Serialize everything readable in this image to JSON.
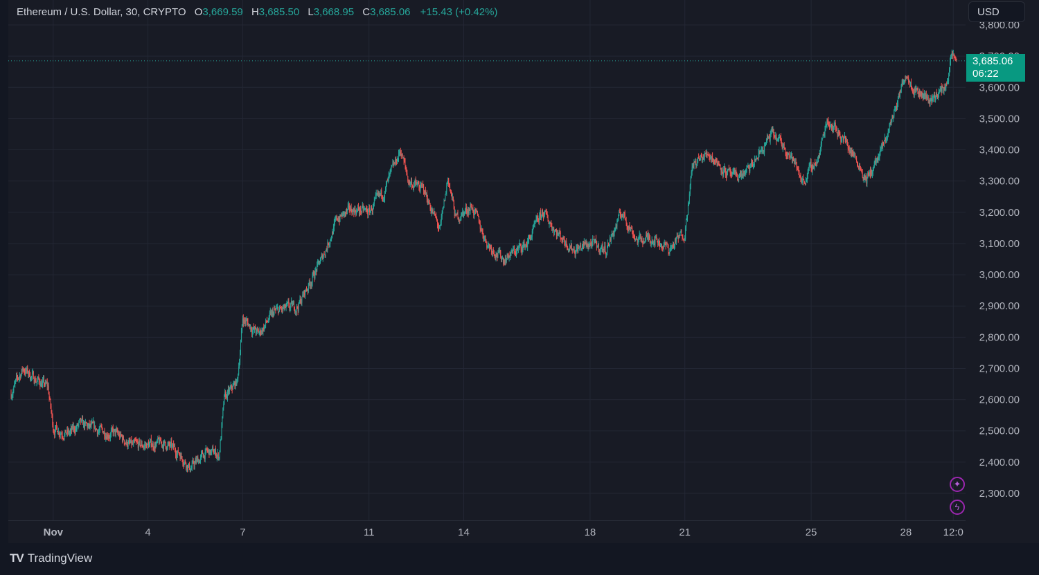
{
  "legend": {
    "symbol": "Ethereum / U.S. Dollar, 30, CRYPTO",
    "open_label": "O",
    "open": "3,669.59",
    "high_label": "H",
    "high": "3,685.50",
    "low_label": "L",
    "low": "3,668.95",
    "close_label": "C",
    "close": "3,685.06",
    "change": "+15.43 (+0.42%)"
  },
  "currency_button": "USD",
  "last_price": {
    "price": "3,685.06",
    "countdown": "06:22"
  },
  "brand": {
    "name": "TradingView"
  },
  "icons": {
    "ai": "sparkle-icon",
    "alert": "lightning-icon"
  },
  "colors": {
    "up": "#26a69a",
    "down": "#ef5350",
    "background": "#131722",
    "grid": "#2a2e39",
    "last_price": "#089981"
  },
  "chart_data": {
    "type": "candlestick",
    "title": "Ethereum / U.S. Dollar, 30, CRYPTO",
    "interval": "30",
    "ylim": [
      2230,
      3850
    ],
    "y_ticks": [
      3800,
      3700,
      3600,
      3500,
      3400,
      3300,
      3200,
      3100,
      3000,
      2900,
      2800,
      2700,
      2600,
      2500,
      2400,
      2300
    ],
    "y_tick_labels": [
      "3,800.00",
      "3,700.00",
      "3,600.00",
      "3,500.00",
      "3,400.00",
      "3,300.00",
      "3,200.00",
      "3,100.00",
      "3,000.00",
      "2,900.00",
      "2,800.00",
      "2,700.00",
      "2,600.00",
      "2,500.00",
      "2,400.00",
      "2,300.00"
    ],
    "x_range": [
      "2024-10-30T16:00",
      "2024-11-29T14:30"
    ],
    "x_ticks": [
      {
        "label": "Nov",
        "t": "2024-11-01T00:00",
        "bold": true
      },
      {
        "label": "4",
        "t": "2024-11-04T00:00"
      },
      {
        "label": "7",
        "t": "2024-11-07T00:00"
      },
      {
        "label": "11",
        "t": "2024-11-11T00:00"
      },
      {
        "label": "14",
        "t": "2024-11-14T00:00"
      },
      {
        "label": "18",
        "t": "2024-11-18T00:00"
      },
      {
        "label": "21",
        "t": "2024-11-21T00:00"
      },
      {
        "label": "25",
        "t": "2024-11-25T00:00"
      },
      {
        "label": "28",
        "t": "2024-11-28T00:00"
      },
      {
        "label": "12:0",
        "t": "2024-11-29T12:00"
      }
    ],
    "last_price": 3685.06,
    "ohlc_last": {
      "open": 3669.59,
      "high": 3685.5,
      "low": 3668.95,
      "close": 3685.06
    },
    "path_anchors": [
      [
        "2024-10-30T16:00",
        2620
      ],
      [
        "2024-10-31T01:00",
        2700
      ],
      [
        "2024-10-31T09:00",
        2670
      ],
      [
        "2024-10-31T20:00",
        2640
      ],
      [
        "2024-11-01T00:00",
        2510
      ],
      [
        "2024-11-01T12:00",
        2490
      ],
      [
        "2024-11-01T20:00",
        2520
      ],
      [
        "2024-11-02T12:00",
        2500
      ],
      [
        "2024-11-03T00:00",
        2490
      ],
      [
        "2024-11-03T12:00",
        2450
      ],
      [
        "2024-11-04T12:00",
        2460
      ],
      [
        "2024-11-05T00:00",
        2430
      ],
      [
        "2024-11-05T08:00",
        2380
      ],
      [
        "2024-11-05T20:00",
        2430
      ],
      [
        "2024-11-06T03:00",
        2430
      ],
      [
        "2024-11-06T06:00",
        2420
      ],
      [
        "2024-11-06T10:00",
        2600
      ],
      [
        "2024-11-06T20:00",
        2660
      ],
      [
        "2024-11-07T00:00",
        2860
      ],
      [
        "2024-11-07T12:00",
        2810
      ],
      [
        "2024-11-08T00:00",
        2880
      ],
      [
        "2024-11-08T18:00",
        2900
      ],
      [
        "2024-11-09T12:00",
        3050
      ],
      [
        "2024-11-10T00:00",
        3180
      ],
      [
        "2024-11-10T12:00",
        3210
      ],
      [
        "2024-11-11T00:00",
        3200
      ],
      [
        "2024-11-11T12:00",
        3270
      ],
      [
        "2024-11-12T00:00",
        3400
      ],
      [
        "2024-11-12T06:00",
        3300
      ],
      [
        "2024-11-12T18:00",
        3270
      ],
      [
        "2024-11-13T06:00",
        3140
      ],
      [
        "2024-11-13T12:00",
        3310
      ],
      [
        "2024-11-13T18:00",
        3180
      ],
      [
        "2024-11-14T06:00",
        3220
      ],
      [
        "2024-11-14T18:00",
        3100
      ],
      [
        "2024-11-15T06:00",
        3050
      ],
      [
        "2024-11-16T00:00",
        3100
      ],
      [
        "2024-11-16T12:00",
        3200
      ],
      [
        "2024-11-17T00:00",
        3130
      ],
      [
        "2024-11-17T12:00",
        3080
      ],
      [
        "2024-11-18T00:00",
        3100
      ],
      [
        "2024-11-18T12:00",
        3080
      ],
      [
        "2024-11-19T00:00",
        3200
      ],
      [
        "2024-11-19T12:00",
        3110
      ],
      [
        "2024-11-20T00:00",
        3120
      ],
      [
        "2024-11-20T12:00",
        3080
      ],
      [
        "2024-11-21T00:00",
        3140
      ],
      [
        "2024-11-21T06:00",
        3350
      ],
      [
        "2024-11-21T18:00",
        3390
      ],
      [
        "2024-11-22T12:00",
        3310
      ],
      [
        "2024-11-23T00:00",
        3330
      ],
      [
        "2024-11-23T18:00",
        3450
      ],
      [
        "2024-11-24T06:00",
        3400
      ],
      [
        "2024-11-24T18:00",
        3300
      ],
      [
        "2024-11-25T06:00",
        3380
      ],
      [
        "2024-11-25T12:00",
        3500
      ],
      [
        "2024-11-26T00:00",
        3440
      ],
      [
        "2024-11-26T12:00",
        3360
      ],
      [
        "2024-11-26T18:00",
        3300
      ],
      [
        "2024-11-27T06:00",
        3400
      ],
      [
        "2024-11-27T18:00",
        3560
      ],
      [
        "2024-11-28T00:00",
        3650
      ],
      [
        "2024-11-28T06:00",
        3600
      ],
      [
        "2024-11-28T18:00",
        3560
      ],
      [
        "2024-11-29T06:00",
        3600
      ],
      [
        "2024-11-29T11:00",
        3700
      ],
      [
        "2024-11-29T14:30",
        3685
      ]
    ]
  }
}
